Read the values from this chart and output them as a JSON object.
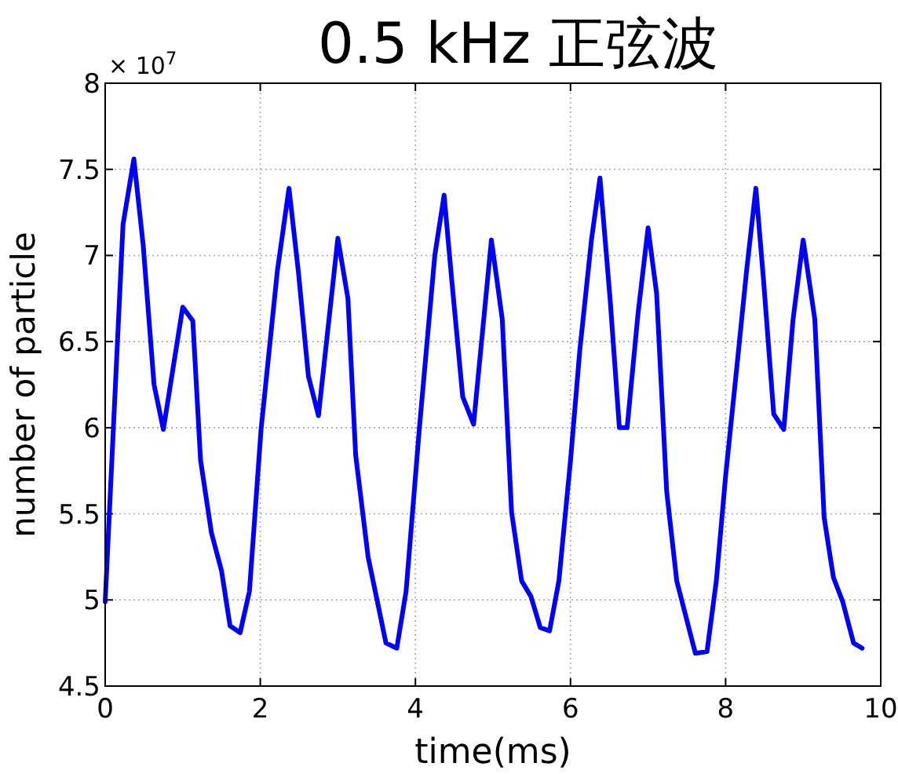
{
  "chart_data": {
    "type": "line",
    "title": "0.5 kHz 正弦波",
    "xlabel": "time(ms)",
    "ylabel": "number of particle",
    "annotations": [
      "× 10$^{7}$"
    ],
    "xlim": [
      0,
      10
    ],
    "ylim": [
      4.5,
      8
    ],
    "xticks": [
      0,
      2,
      4,
      6,
      8,
      10
    ],
    "yticks": [
      4.5,
      5,
      5.5,
      6,
      6.5,
      7,
      7.5,
      8
    ],
    "grid": true,
    "series": [
      {
        "color": "#0000ff",
        "x": [
          0,
          0.23,
          0.37,
          0.49,
          0.63,
          0.75,
          1.0,
          1.13,
          1.23,
          1.37,
          1.5,
          1.61,
          1.74,
          1.86,
          2.01,
          2.22,
          2.37,
          2.49,
          2.62,
          2.75,
          3.0,
          3.13,
          3.23,
          3.39,
          3.51,
          3.62,
          3.76,
          3.88,
          4.05,
          4.25,
          4.37,
          4.47,
          4.61,
          4.75,
          4.98,
          5.12,
          5.24,
          5.37,
          5.49,
          5.61,
          5.73,
          5.85,
          6.0,
          6.12,
          6.27,
          6.38,
          6.51,
          6.63,
          6.73,
          6.87,
          7.0,
          7.11,
          7.24,
          7.37,
          7.49,
          7.61,
          7.76,
          7.88,
          8.0,
          8.16,
          8.27,
          8.39,
          8.49,
          8.62,
          8.75,
          8.87,
          9.0,
          9.15,
          9.27,
          9.39,
          9.51,
          9.65,
          9.76
        ],
        "values": [
          4.99,
          7.18,
          7.56,
          7.06,
          6.25,
          5.99,
          6.7,
          6.62,
          5.81,
          5.39,
          5.17,
          4.85,
          4.81,
          5.05,
          5.99,
          6.91,
          7.39,
          6.91,
          6.3,
          6.07,
          7.1,
          6.75,
          5.84,
          5.25,
          4.99,
          4.75,
          4.72,
          5.05,
          5.99,
          7.0,
          7.35,
          6.85,
          6.18,
          6.02,
          7.09,
          6.63,
          5.51,
          5.11,
          5.02,
          4.84,
          4.82,
          5.11,
          5.81,
          6.45,
          7.09,
          7.45,
          6.75,
          6.0,
          6.0,
          6.66,
          7.16,
          6.78,
          5.63,
          5.11,
          4.9,
          4.69,
          4.7,
          5.11,
          5.72,
          6.42,
          6.91,
          7.39,
          6.85,
          6.08,
          5.99,
          6.63,
          7.09,
          6.63,
          5.48,
          5.13,
          4.99,
          4.75,
          4.72
        ]
      }
    ]
  }
}
